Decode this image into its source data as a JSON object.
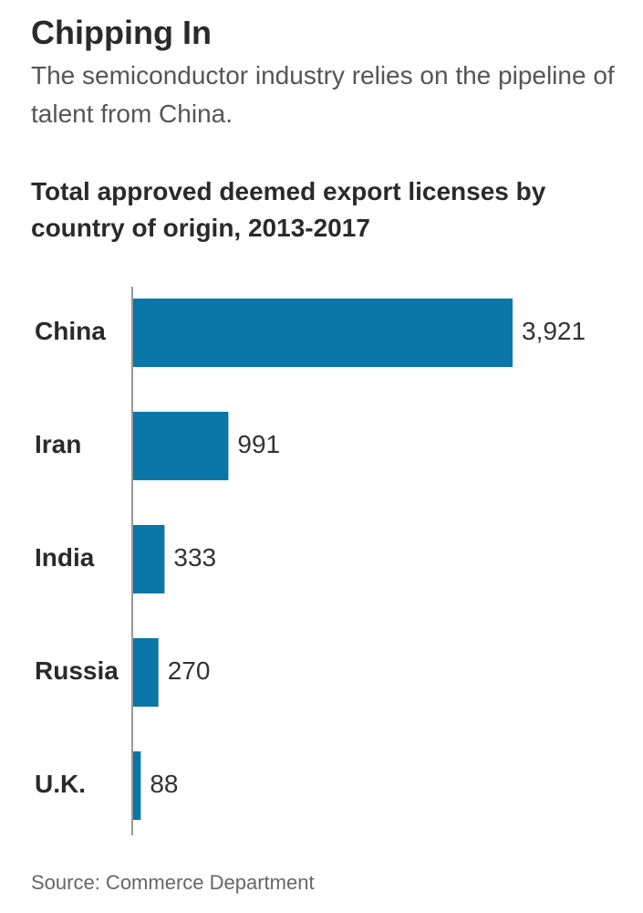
{
  "header": {
    "title": "Chipping In",
    "subtitle": "The semiconductor industry relies on the pipeline of talent from China."
  },
  "chart_data": {
    "type": "bar",
    "orientation": "horizontal",
    "title": "Total approved deemed export licenses by country of origin, 2013-2017",
    "categories": [
      "China",
      "Iran",
      "India",
      "Russia",
      "U.K."
    ],
    "values": [
      3921,
      991,
      333,
      270,
      88
    ],
    "value_labels": [
      "3,921",
      "991",
      "333",
      "270",
      "88"
    ],
    "xlabel": "",
    "ylabel": "",
    "xlim": [
      0,
      3921
    ],
    "grid": false,
    "legend": "none",
    "bar_color": "#0a77a8",
    "axis_color": "#999999"
  },
  "footer": {
    "source": "Source: Commerce Department"
  }
}
